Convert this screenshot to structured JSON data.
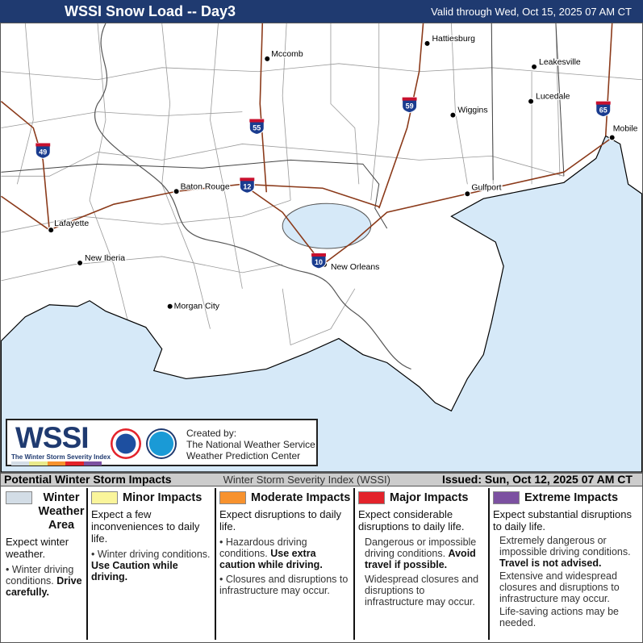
{
  "header": {
    "title": "WSSI Snow Load -- Day3",
    "valid": "Valid through Wed, Oct 15, 2025 07 AM CT"
  },
  "map": {
    "land_color": "#ffffff",
    "water_color": "#d6e9f8",
    "interstate_color": "#8b3a1a",
    "cities": [
      {
        "name": "Hattiesburg"
      },
      {
        "name": "Mccomb"
      },
      {
        "name": "Leakesville"
      },
      {
        "name": "Lucedale"
      },
      {
        "name": "Wiggins"
      },
      {
        "name": "Mobile"
      },
      {
        "name": "Baton Rouge"
      },
      {
        "name": "Gulfport"
      },
      {
        "name": "Lafayette"
      },
      {
        "name": "New Iberia"
      },
      {
        "name": "New Orleans"
      },
      {
        "name": "Morgan City"
      }
    ],
    "interstates": [
      "49",
      "55",
      "12",
      "59",
      "65",
      "10"
    ]
  },
  "logo": {
    "wssi": "WSSI",
    "subtitle": "The Winter Storm Severity Index",
    "created_by": "Created by:",
    "org1": "The National Weather Service",
    "org2": "Weather Prediction Center",
    "noaa": "NOAA"
  },
  "strip": {
    "left": "Potential Winter Storm Impacts",
    "center": "Winter Storm Severity Index (WSSI)",
    "right": "Issued: Sun, Oct 12, 2025 07 AM CT"
  },
  "legend": [
    {
      "label": "Winter Weather Area",
      "color": "#d3dde6",
      "expect": "Expect winter weather.",
      "b1": "Winter driving conditions.",
      "b1_bold": "Drive carefully."
    },
    {
      "label": "Minor Impacts",
      "color": "#faf59b",
      "expect": "Expect a few inconveniences to daily life.",
      "b1": "Winter driving conditions.",
      "b1_bold": "Use Caution while driving."
    },
    {
      "label": "Moderate Impacts",
      "color": "#f7922e",
      "expect": "Expect disruptions to daily life.",
      "b1": "Hazardous driving conditions.",
      "b1_bold": "Use extra caution while driving.",
      "b2": "Closures and disruptions to infrastructure may occur."
    },
    {
      "label": "Major Impacts",
      "color": "#e3232b",
      "expect": "Expect considerable disruptions to daily life.",
      "b1": "Dangerous or impossible driving conditions.",
      "b1_bold": "Avoid travel if possible.",
      "b2": "Widespread closures and disruptions to infrastructure may occur."
    },
    {
      "label": "Extreme Impacts",
      "color": "#7c51a1",
      "expect": "Expect substantial disruptions to daily life.",
      "b1": "Extremely dangerous or impossible driving conditions.",
      "b1_bold": "Travel is not advised.",
      "b2": "Extensive and widespread closures and disruptions to infrastructure may occur.",
      "b3": "Life-saving actions may be needed."
    }
  ]
}
